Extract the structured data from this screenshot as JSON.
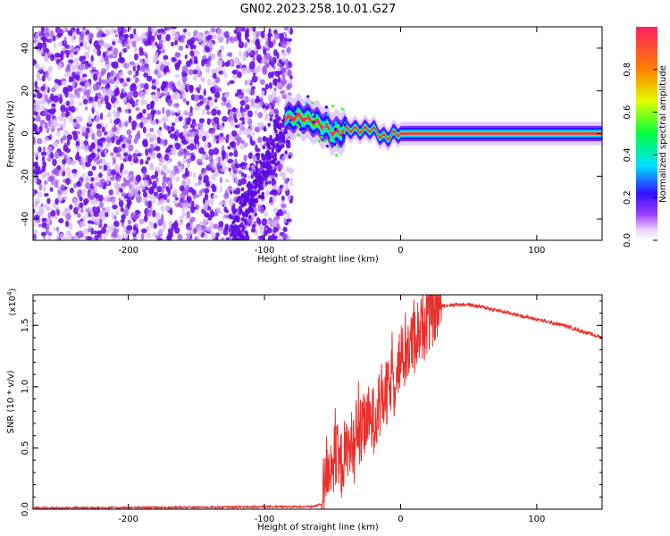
{
  "chart_data": [
    {
      "type": "heatmap",
      "title": "GN02.2023.258.10.01.G27",
      "xlabel": "Height of straight line (km)",
      "ylabel": "Frequency (Hz)",
      "xlim": [
        -270,
        148
      ],
      "ylim": [
        -50,
        50
      ],
      "xticks": [
        -200,
        -100,
        0,
        100
      ],
      "yticks": [
        -40,
        -20,
        0,
        20,
        40
      ],
      "colorbar": {
        "label": "Normalized spectral amplitude",
        "range": [
          0,
          1
        ],
        "ticks": [
          0.0,
          0.2,
          0.4,
          0.6,
          0.8
        ]
      },
      "ridge_frequency": {
        "x": [
          -85,
          -75,
          -65,
          -55,
          -50,
          -45,
          -40,
          -35,
          -30,
          -25,
          -20,
          -15,
          -10,
          -5,
          0,
          50,
          100,
          148
        ],
        "y": [
          7,
          8,
          6,
          3,
          0.5,
          0.5,
          2,
          2,
          1.5,
          2,
          2,
          -1,
          -2,
          0,
          0,
          0,
          0,
          0
        ]
      },
      "noise_region_x": [
        -270,
        -80
      ]
    },
    {
      "type": "line",
      "xlabel": "Height of straight line (km)",
      "ylabel": "SNR (10 * v/v)",
      "y_scale_label": "(x10",
      "y_scale_exponent": "4",
      "y_scale_close": ")",
      "xlim": [
        -270,
        148
      ],
      "ylim": [
        0,
        1.75
      ],
      "xticks": [
        -200,
        -100,
        0,
        100
      ],
      "yticks": [
        0.0,
        0.5,
        1.0,
        1.5
      ],
      "color": "#e8302c",
      "series": [
        {
          "x": [
            -270,
            -150,
            -100,
            -65,
            -58,
            -55,
            -50,
            -45,
            -40,
            -35,
            -30,
            -25,
            -20,
            -15,
            -10,
            -5,
            0,
            5,
            10,
            15,
            20,
            25,
            30,
            40,
            50,
            60,
            80,
            100,
            120,
            148
          ],
          "values": [
            0.01,
            0.015,
            0.02,
            0.02,
            0.04,
            0.3,
            0.4,
            0.35,
            0.45,
            0.5,
            0.6,
            0.7,
            0.75,
            0.85,
            0.95,
            1.05,
            1.2,
            1.3,
            1.4,
            1.5,
            1.58,
            1.63,
            1.66,
            1.67,
            1.67,
            1.65,
            1.6,
            1.55,
            1.5,
            1.4
          ]
        }
      ]
    }
  ]
}
